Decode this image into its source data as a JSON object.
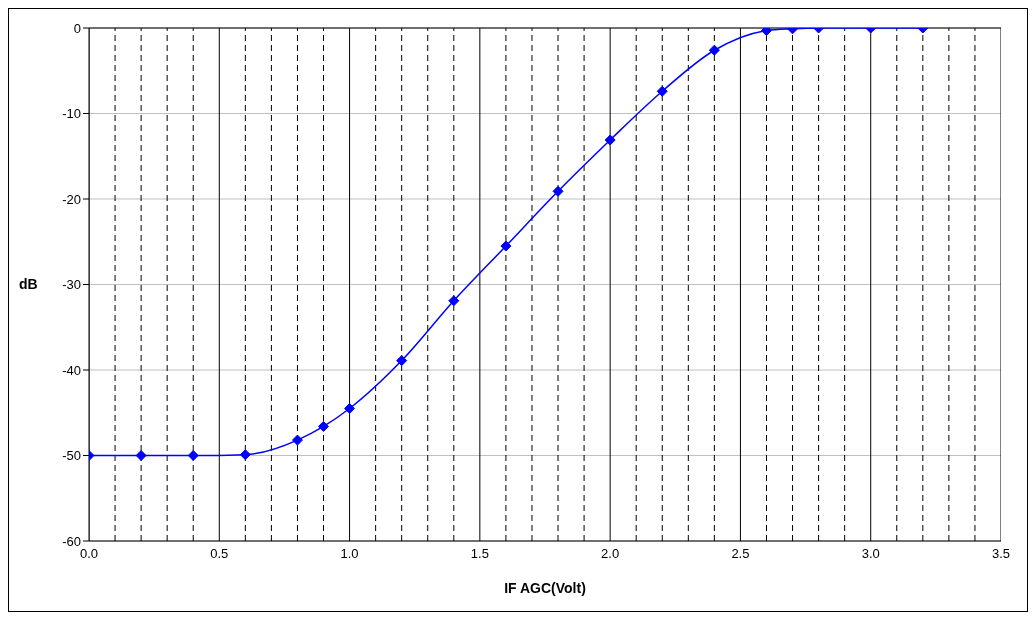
{
  "chart_data": {
    "type": "line",
    "xlabel": "IF AGC(Volt)",
    "ylabel": "dB",
    "x": [
      0.0,
      0.2,
      0.4,
      0.6,
      0.8,
      0.9,
      1.0,
      1.2,
      1.4,
      1.6,
      1.8,
      2.0,
      2.2,
      2.4,
      2.6,
      2.7,
      2.8,
      3.0,
      3.2
    ],
    "series": [
      {
        "color": "#0000ff",
        "values": [
          -50,
          -50,
          -50,
          -49.9,
          -48.2,
          -46.6,
          -44.5,
          -38.9,
          -31.9,
          -25.5,
          -19.1,
          -13.1,
          -7.4,
          -2.6,
          -0.3,
          -0.1,
          0,
          0,
          0
        ]
      }
    ],
    "xlim": [
      0,
      3.5
    ],
    "xticks": [
      {
        "value": 0,
        "label": "0.0"
      },
      {
        "value": 0.1,
        "label": null
      },
      {
        "value": 0.2,
        "label": null
      },
      {
        "value": 0.3,
        "label": null
      },
      {
        "value": 0.4,
        "label": null
      },
      {
        "value": 0.5,
        "label": "0.5"
      },
      {
        "value": 0.6,
        "label": null
      },
      {
        "value": 0.7,
        "label": null
      },
      {
        "value": 0.8,
        "label": null
      },
      {
        "value": 0.9,
        "label": null
      },
      {
        "value": 1,
        "label": "1.0"
      },
      {
        "value": 1.1,
        "label": null
      },
      {
        "value": 1.2,
        "label": null
      },
      {
        "value": 1.3,
        "label": null
      },
      {
        "value": 1.4,
        "label": null
      },
      {
        "value": 1.5,
        "label": "1.5"
      },
      {
        "value": 1.6,
        "label": null
      },
      {
        "value": 1.7,
        "label": null
      },
      {
        "value": 1.8,
        "label": null
      },
      {
        "value": 1.9,
        "label": null
      },
      {
        "value": 2,
        "label": "2.0"
      },
      {
        "value": 2.1,
        "label": null
      },
      {
        "value": 2.2,
        "label": null
      },
      {
        "value": 2.3,
        "label": null
      },
      {
        "value": 2.4,
        "label": null
      },
      {
        "value": 2.5,
        "label": "2.5"
      },
      {
        "value": 2.6,
        "label": null
      },
      {
        "value": 2.7,
        "label": null
      },
      {
        "value": 2.8,
        "label": null
      },
      {
        "value": 2.9,
        "label": null
      },
      {
        "value": 3,
        "label": "3.0"
      },
      {
        "value": 3.1,
        "label": null
      },
      {
        "value": 3.2,
        "label": null
      },
      {
        "value": 3.3,
        "label": null
      },
      {
        "value": 3.4,
        "label": null
      },
      {
        "value": 3.5,
        "label": "3.5"
      }
    ],
    "ylim": [
      -60,
      0
    ],
    "yticks": [
      -60,
      -50,
      -40,
      -30,
      -20,
      -10,
      0
    ],
    "grid": true,
    "marker": "diamond",
    "line_style": "solid"
  }
}
